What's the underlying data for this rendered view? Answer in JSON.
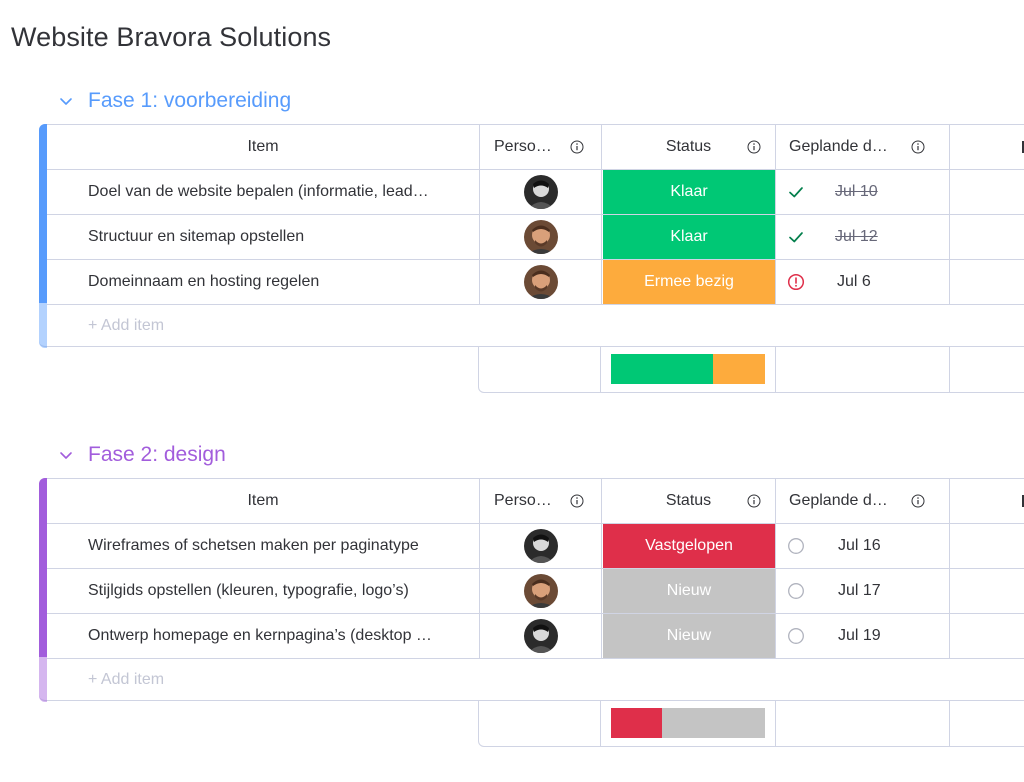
{
  "board": {
    "title": "Website Bravora Solutions"
  },
  "columns": {
    "item": "Item",
    "person": "Perso…",
    "status": "Status",
    "date": "Geplande d…"
  },
  "colors": {
    "done": "#00c875",
    "working": "#fdab3d",
    "stuck": "#df2f4a",
    "new": "#c4c4c4",
    "group1": "#579bfc",
    "group2": "#a25ddc"
  },
  "groups": [
    {
      "title": "Fase 1: voorbereiding",
      "add_item": "+ Add item",
      "rows": [
        {
          "item": "Doel van de website bepalen (informatie, lead…",
          "avatar": "avatar-dark",
          "status": "Klaar",
          "date_icon": "check-icon",
          "date": "Jul 10"
        },
        {
          "item": "Structuur en sitemap opstellen",
          "avatar": "avatar-brown",
          "status": "Klaar",
          "date_icon": "check-icon",
          "date": "Jul 12"
        },
        {
          "item": "Domeinnaam en hosting regelen",
          "avatar": "avatar-brown",
          "status": "Ermee bezig",
          "date_icon": "alert-icon",
          "date": "Jul 6"
        }
      ],
      "status_summary": [
        {
          "status": "Klaar",
          "fraction": 0.6667
        },
        {
          "status": "Ermee bezig",
          "fraction": 0.3333
        }
      ]
    },
    {
      "title": "Fase 2: design",
      "add_item": "+ Add item",
      "rows": [
        {
          "item": "Wireframes of schetsen maken per paginatype",
          "avatar": "avatar-dark",
          "status": "Vastgelopen",
          "date_icon": "circle-icon",
          "date": "Jul 16"
        },
        {
          "item": "Stijlgids opstellen (kleuren, typografie, logo’s)",
          "avatar": "avatar-brown",
          "status": "Nieuw",
          "date_icon": "circle-icon",
          "date": "Jul 17"
        },
        {
          "item": "Ontwerp homepage en kernpagina’s (desktop …",
          "avatar": "avatar-dark",
          "status": "Nieuw",
          "date_icon": "circle-icon",
          "date": "Jul 19"
        }
      ],
      "status_summary": [
        {
          "status": "Vastgelopen",
          "fraction": 0.3333
        },
        {
          "status": "Nieuw",
          "fraction": 0.6667
        }
      ]
    }
  ]
}
